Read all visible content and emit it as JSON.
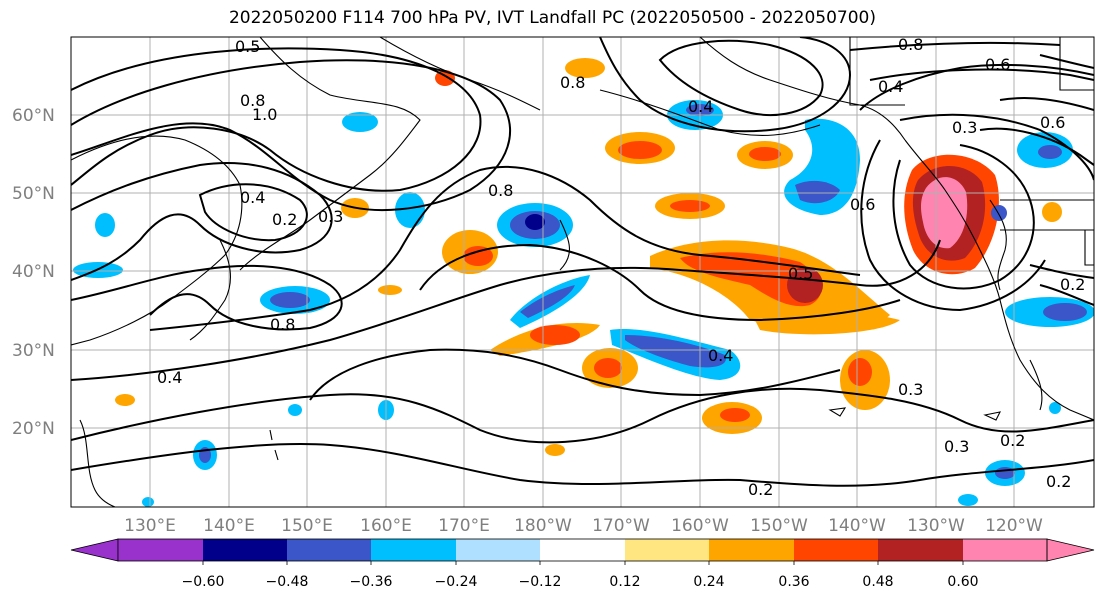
{
  "title": "2022050200 F114 700 hPa PV, IVT Landfall PC (2022050500 - 2022050700)",
  "lat_ticks": [
    "60°N",
    "50°N",
    "40°N",
    "30°N",
    "20°N"
  ],
  "lon_ticks": [
    "130°E",
    "140°E",
    "150°E",
    "160°E",
    "170°E",
    "180°W",
    "170°W",
    "160°W",
    "150°W",
    "140°W",
    "130°W",
    "120°W"
  ],
  "contour_labels": [
    "0.5",
    "0.8",
    "1.0",
    "0.4",
    "0.2",
    "0.3",
    "0.8",
    "0.8",
    "0.8",
    "0.4",
    "0.6",
    "0.4",
    "0.3",
    "0.6",
    "0.8",
    "0.6",
    "0.5",
    "0.4",
    "0.4",
    "0.3",
    "0.3",
    "0.2",
    "0.2",
    "0.2",
    "0.2"
  ],
  "colorbar": {
    "ticks": [
      "−0.60",
      "−0.48",
      "−0.36",
      "−0.24",
      "−0.12",
      "0.12",
      "0.24",
      "0.36",
      "0.48",
      "0.60"
    ],
    "colors": [
      "#9932cc",
      "#00008b",
      "#3a56c8",
      "#00bfff",
      "#b0e0ff",
      "#ffffff",
      "#ffe680",
      "#ffa500",
      "#ff4500",
      "#b22222",
      "#ff85b0"
    ]
  }
}
